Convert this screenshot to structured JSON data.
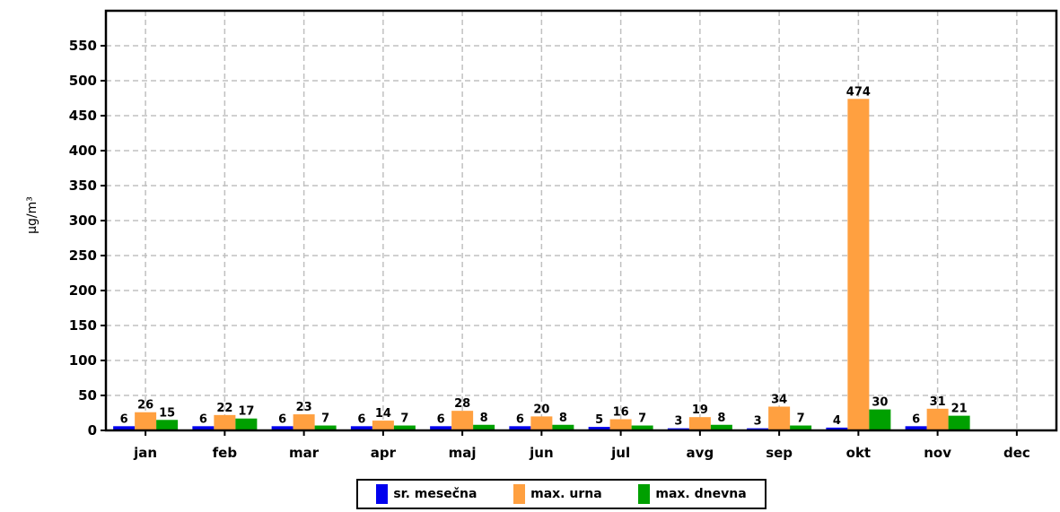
{
  "chart_data": {
    "type": "bar",
    "ylabel": "µg/m³",
    "ylim": [
      0,
      600
    ],
    "yticks": [
      0,
      50,
      100,
      150,
      200,
      250,
      300,
      350,
      400,
      450,
      500,
      550
    ],
    "grid": true,
    "legend_position": "bottom",
    "categories": [
      "jan",
      "feb",
      "mar",
      "apr",
      "maj",
      "jun",
      "jul",
      "avg",
      "sep",
      "okt",
      "nov",
      "dec"
    ],
    "series": [
      {
        "name": "sr. mesečna",
        "color": "#0000ee",
        "values": [
          6,
          6,
          6,
          6,
          6,
          6,
          5,
          3,
          3,
          4,
          6,
          null
        ]
      },
      {
        "name": "max. urna",
        "color": "#ffa040",
        "values": [
          26,
          22,
          23,
          14,
          28,
          20,
          16,
          19,
          34,
          474,
          31,
          null
        ]
      },
      {
        "name": "max. dnevna",
        "color": "#00a000",
        "values": [
          15,
          17,
          7,
          7,
          8,
          8,
          7,
          8,
          7,
          30,
          21,
          null
        ]
      }
    ]
  }
}
